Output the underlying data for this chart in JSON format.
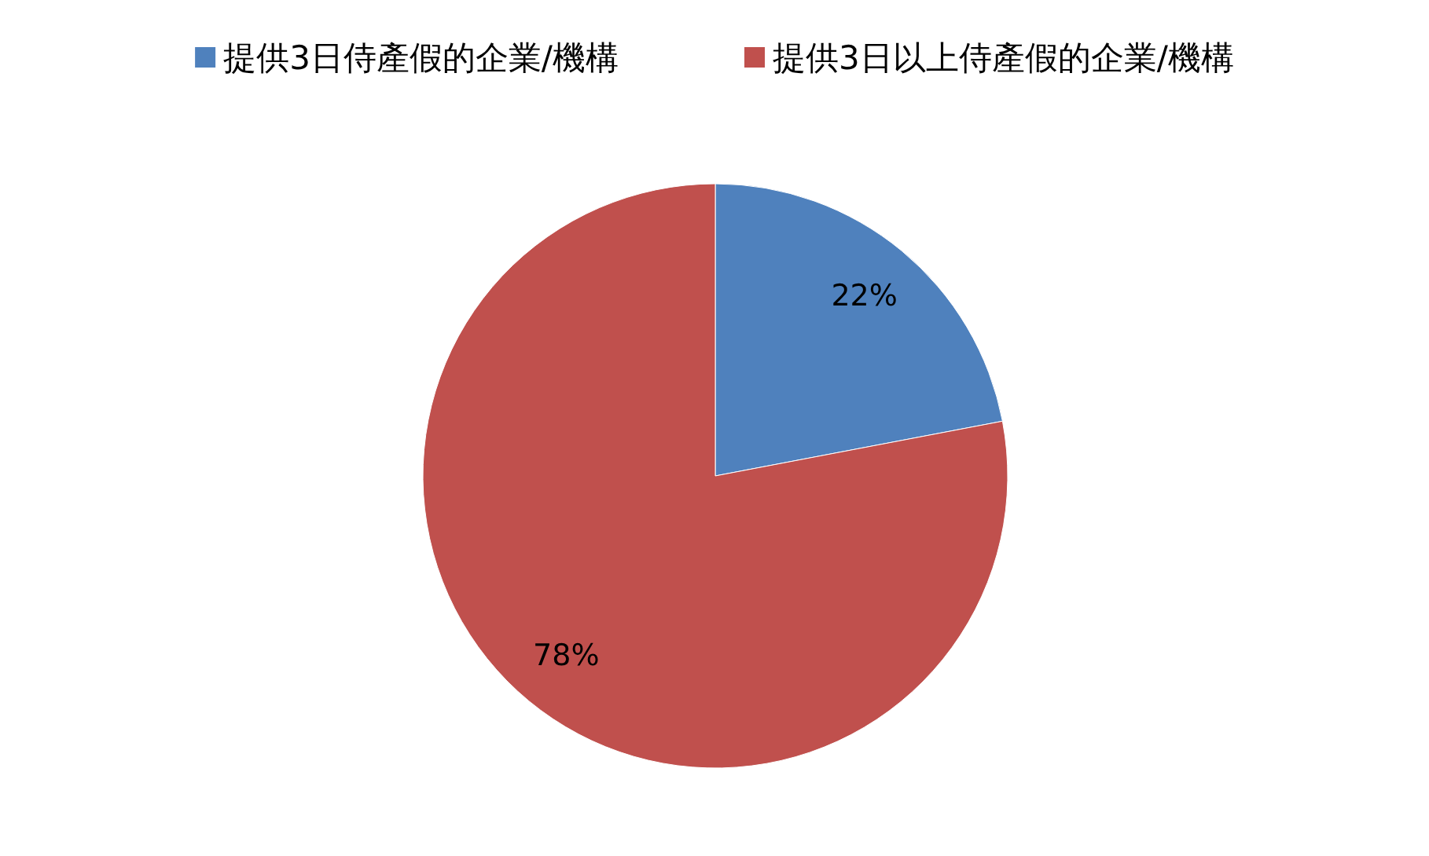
{
  "chart_data": {
    "type": "pie",
    "categories": [
      "提供3日侍產假的企業/機構",
      "提供3日以上侍產假的企業/機構"
    ],
    "values": [
      22,
      78
    ],
    "colors": [
      "#4f81bd",
      "#c0504d"
    ],
    "value_labels": [
      "22%",
      "78%"
    ],
    "legend": "top"
  }
}
